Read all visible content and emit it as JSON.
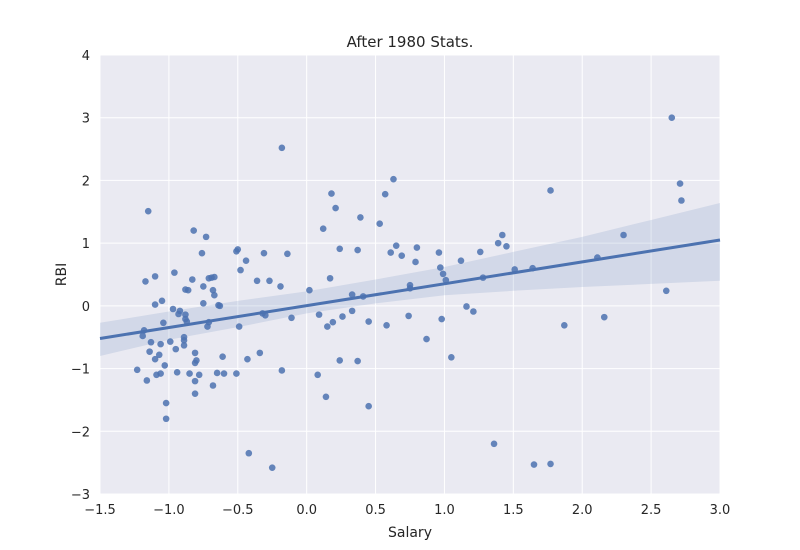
{
  "chart_data": {
    "type": "scatter",
    "title": "After 1980 Stats.",
    "xlabel": "Salary",
    "ylabel": "RBI",
    "xlim": [
      -1.5,
      3.0
    ],
    "ylim": [
      -3,
      4
    ],
    "xticks": [
      -1.5,
      -1.0,
      -0.5,
      0.0,
      0.5,
      1.0,
      1.5,
      2.0,
      2.5,
      3.0
    ],
    "xtick_labels": [
      "−1.5",
      "−1.0",
      "−0.5",
      "0.0",
      "0.5",
      "1.0",
      "1.5",
      "2.0",
      "2.5",
      "3.0"
    ],
    "yticks": [
      -3,
      -2,
      -1,
      0,
      1,
      2,
      3,
      4
    ],
    "ytick_labels": [
      "−3",
      "−2",
      "−1",
      "0",
      "1",
      "2",
      "3",
      "4"
    ],
    "grid": true,
    "colors": {
      "background": "#eaeaf2",
      "grid": "#ffffff",
      "points": "#4c72b0",
      "line": "#4c72b0",
      "band": "#4c72b0"
    },
    "series": [
      {
        "type": "scatter",
        "points": [
          [
            -1.23,
            -1.02
          ],
          [
            -1.19,
            -0.48
          ],
          [
            -1.18,
            -0.39
          ],
          [
            -1.17,
            0.39
          ],
          [
            -1.16,
            -1.19
          ],
          [
            -1.15,
            1.51
          ],
          [
            -1.14,
            -0.73
          ],
          [
            -1.13,
            -0.58
          ],
          [
            -1.1,
            0.47
          ],
          [
            -1.1,
            -0.85
          ],
          [
            -1.1,
            0.02
          ],
          [
            -1.09,
            -1.1
          ],
          [
            -1.07,
            -0.78
          ],
          [
            -1.06,
            -0.61
          ],
          [
            -1.06,
            -1.08
          ],
          [
            -1.05,
            0.08
          ],
          [
            -1.04,
            -0.27
          ],
          [
            -1.03,
            -0.95
          ],
          [
            -1.02,
            -1.55
          ],
          [
            -1.02,
            -1.8
          ],
          [
            -0.99,
            -0.57
          ],
          [
            -0.97,
            -0.05
          ],
          [
            -0.96,
            0.53
          ],
          [
            -0.95,
            -0.69
          ],
          [
            -0.94,
            -1.06
          ],
          [
            -0.93,
            -0.13
          ],
          [
            -0.92,
            -0.08
          ],
          [
            -0.89,
            -0.55
          ],
          [
            -0.89,
            -0.5
          ],
          [
            -0.89,
            -0.63
          ],
          [
            -0.88,
            0.26
          ],
          [
            -0.88,
            -0.14
          ],
          [
            -0.88,
            -0.21
          ],
          [
            -0.87,
            -0.25
          ],
          [
            -0.86,
            0.25
          ],
          [
            -0.85,
            -1.08
          ],
          [
            -0.83,
            0.42
          ],
          [
            -0.82,
            1.2
          ],
          [
            -0.81,
            -1.2
          ],
          [
            -0.81,
            -0.75
          ],
          [
            -0.81,
            -0.91
          ],
          [
            -0.81,
            -1.4
          ],
          [
            -0.8,
            -0.87
          ],
          [
            -0.78,
            -1.1
          ],
          [
            -0.76,
            0.84
          ],
          [
            -0.75,
            0.31
          ],
          [
            -0.75,
            0.04
          ],
          [
            -0.73,
            1.1
          ],
          [
            -0.72,
            -0.33
          ],
          [
            -0.71,
            0.44
          ],
          [
            -0.71,
            -0.26
          ],
          [
            -0.69,
            0.45
          ],
          [
            -0.68,
            -1.27
          ],
          [
            -0.68,
            0.25
          ],
          [
            -0.67,
            0.17
          ],
          [
            -0.67,
            0.46
          ],
          [
            -0.65,
            -1.07
          ],
          [
            -0.64,
            0.01
          ],
          [
            -0.63,
            0.0
          ],
          [
            -0.61,
            -0.81
          ],
          [
            -0.6,
            -1.08
          ],
          [
            -0.51,
            -1.08
          ],
          [
            -0.51,
            0.87
          ],
          [
            -0.5,
            0.9
          ],
          [
            -0.49,
            -0.33
          ],
          [
            -0.48,
            0.57
          ],
          [
            -0.44,
            0.72
          ],
          [
            -0.43,
            -0.85
          ],
          [
            -0.42,
            -2.35
          ],
          [
            -0.36,
            0.4
          ],
          [
            -0.34,
            -0.75
          ],
          [
            -0.32,
            -0.12
          ],
          [
            -0.31,
            0.84
          ],
          [
            -0.3,
            -0.15
          ],
          [
            -0.27,
            0.4
          ],
          [
            -0.25,
            -2.58
          ],
          [
            -0.19,
            0.31
          ],
          [
            -0.18,
            -1.03
          ],
          [
            -0.18,
            2.52
          ],
          [
            -0.14,
            0.83
          ],
          [
            -0.11,
            -0.19
          ],
          [
            0.02,
            0.25
          ],
          [
            0.08,
            -1.1
          ],
          [
            0.09,
            -0.14
          ],
          [
            0.12,
            1.23
          ],
          [
            0.14,
            -1.45
          ],
          [
            0.15,
            -0.33
          ],
          [
            0.17,
            0.44
          ],
          [
            0.18,
            1.79
          ],
          [
            0.19,
            -0.26
          ],
          [
            0.21,
            1.56
          ],
          [
            0.24,
            -0.87
          ],
          [
            0.24,
            0.91
          ],
          [
            0.26,
            -0.17
          ],
          [
            0.33,
            0.18
          ],
          [
            0.33,
            -0.08
          ],
          [
            0.37,
            -0.88
          ],
          [
            0.37,
            0.89
          ],
          [
            0.39,
            1.41
          ],
          [
            0.41,
            0.15
          ],
          [
            0.45,
            -0.25
          ],
          [
            0.45,
            -1.6
          ],
          [
            0.53,
            1.31
          ],
          [
            0.57,
            1.78
          ],
          [
            0.58,
            -0.31
          ],
          [
            0.61,
            0.85
          ],
          [
            0.63,
            2.02
          ],
          [
            0.65,
            0.96
          ],
          [
            0.69,
            0.8
          ],
          [
            0.74,
            -0.16
          ],
          [
            0.75,
            0.28
          ],
          [
            0.75,
            0.33
          ],
          [
            0.79,
            0.7
          ],
          [
            0.8,
            0.93
          ],
          [
            0.87,
            -0.53
          ],
          [
            0.96,
            0.85
          ],
          [
            0.97,
            0.61
          ],
          [
            0.98,
            -0.21
          ],
          [
            0.99,
            0.51
          ],
          [
            1.01,
            0.41
          ],
          [
            1.05,
            -0.82
          ],
          [
            1.12,
            0.72
          ],
          [
            1.16,
            -0.01
          ],
          [
            1.21,
            -0.09
          ],
          [
            1.26,
            0.86
          ],
          [
            1.28,
            0.45
          ],
          [
            1.36,
            -2.2
          ],
          [
            1.39,
            1.0
          ],
          [
            1.42,
            1.13
          ],
          [
            1.45,
            0.95
          ],
          [
            1.51,
            0.58
          ],
          [
            1.64,
            0.6
          ],
          [
            1.65,
            -2.53
          ],
          [
            1.77,
            -2.52
          ],
          [
            1.77,
            1.84
          ],
          [
            1.87,
            -0.31
          ],
          [
            2.11,
            0.77
          ],
          [
            2.16,
            -0.18
          ],
          [
            2.3,
            1.13
          ],
          [
            2.61,
            0.24
          ],
          [
            2.65,
            3.0
          ],
          [
            2.71,
            1.95
          ],
          [
            2.72,
            1.68
          ]
        ]
      },
      {
        "type": "regression",
        "line": [
          [
            -1.5,
            -0.52
          ],
          [
            3.0,
            1.05
          ]
        ],
        "band_upper": [
          [
            -1.5,
            -0.27
          ],
          [
            -1.0,
            -0.09
          ],
          [
            -0.5,
            0.08
          ],
          [
            0.0,
            0.23
          ],
          [
            0.5,
            0.42
          ],
          [
            1.0,
            0.62
          ],
          [
            1.5,
            0.86
          ],
          [
            2.0,
            1.1
          ],
          [
            2.5,
            1.37
          ],
          [
            3.0,
            1.64
          ]
        ],
        "band_lower": [
          [
            -1.5,
            -0.8
          ],
          [
            -1.0,
            -0.54
          ],
          [
            -0.5,
            -0.34
          ],
          [
            0.0,
            -0.12
          ],
          [
            0.5,
            0.04
          ],
          [
            1.0,
            0.17
          ],
          [
            1.5,
            0.24
          ],
          [
            2.0,
            0.3
          ],
          [
            2.5,
            0.35
          ],
          [
            3.0,
            0.4
          ]
        ]
      }
    ]
  }
}
